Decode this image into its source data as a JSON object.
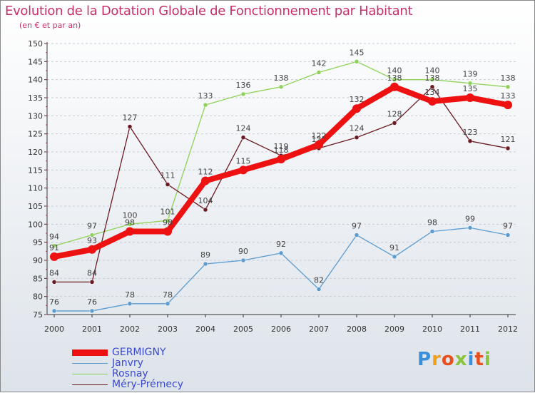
{
  "chart_data": {
    "type": "line",
    "title": "Evolution de la Dotation Globale de Fonctionnement par Habitant",
    "subtitle": "(en € et par an)",
    "xlabel": "",
    "ylabel": "",
    "ylim": [
      75,
      150
    ],
    "yticks": [
      75,
      80,
      85,
      90,
      95,
      100,
      105,
      110,
      115,
      120,
      125,
      130,
      135,
      140,
      145,
      150
    ],
    "x": [
      "2000",
      "2001",
      "2002",
      "2003",
      "2004",
      "2005",
      "2006",
      "2007",
      "2008",
      "2009",
      "2010",
      "2011",
      "2012"
    ],
    "series": [
      {
        "name": "Rosnay",
        "color": "#8ed25a",
        "values": [
          94,
          97,
          100,
          101,
          133,
          136,
          138,
          142,
          145,
          140,
          140,
          139,
          138
        ]
      },
      {
        "name": "Méry-Prémecy",
        "color": "#6b1a22",
        "values": [
          84,
          84,
          127,
          111,
          104,
          124,
          119,
          121,
          124,
          128,
          138,
          123,
          121
        ]
      },
      {
        "name": "Janvry",
        "color": "#5b9bd0",
        "values": [
          76,
          76,
          78,
          78,
          89,
          90,
          92,
          82,
          97,
          91,
          98,
          99,
          97
        ]
      },
      {
        "name": "GERMIGNY",
        "color": "#ee1111",
        "values": [
          91,
          93,
          98,
          98,
          112,
          115,
          118,
          122,
          132,
          138,
          134,
          135,
          133
        ]
      }
    ],
    "legend": [
      "GERMIGNY",
      "Janvry",
      "Rosnay",
      "Méry-Prémecy"
    ],
    "legend_position": "bottom-left"
  },
  "brand": {
    "text": "Proxiti"
  }
}
